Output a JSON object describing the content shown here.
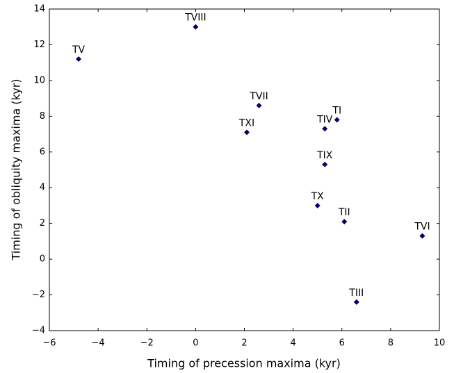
{
  "chart_data": {
    "type": "scatter",
    "x_label": "Timing of precession maxima (kyr)",
    "y_label": "Timing of obliquity maxima (kyr)",
    "labels": [
      "TV",
      "TVIII",
      "TVII",
      "TXI",
      "TIV",
      "TI",
      "TIX",
      "TX",
      "TII",
      "TVI",
      "TIII"
    ],
    "x": [
      -4.8,
      0,
      2.6,
      2.1,
      5.3,
      5.8,
      5.3,
      5.0,
      6.1,
      9.3,
      6.6
    ],
    "values": [
      11.2,
      13,
      8.6,
      7.1,
      7.3,
      7.8,
      5.3,
      3.0,
      2.1,
      1.3,
      -2.4
    ],
    "color": "#000066",
    "xlim": [
      -6,
      10
    ],
    "xticks": [
      {
        "value": -6,
        "label": "−6"
      },
      {
        "value": -4,
        "label": "−4"
      },
      {
        "value": -2,
        "label": "−2"
      },
      0,
      2,
      4,
      6,
      8,
      10
    ],
    "ylim": [
      -4,
      14
    ],
    "yticks": [
      {
        "value": -4,
        "label": "−4"
      },
      {
        "value": -2,
        "label": "−2"
      },
      0,
      2,
      4,
      6,
      8,
      10,
      12,
      14
    ]
  }
}
